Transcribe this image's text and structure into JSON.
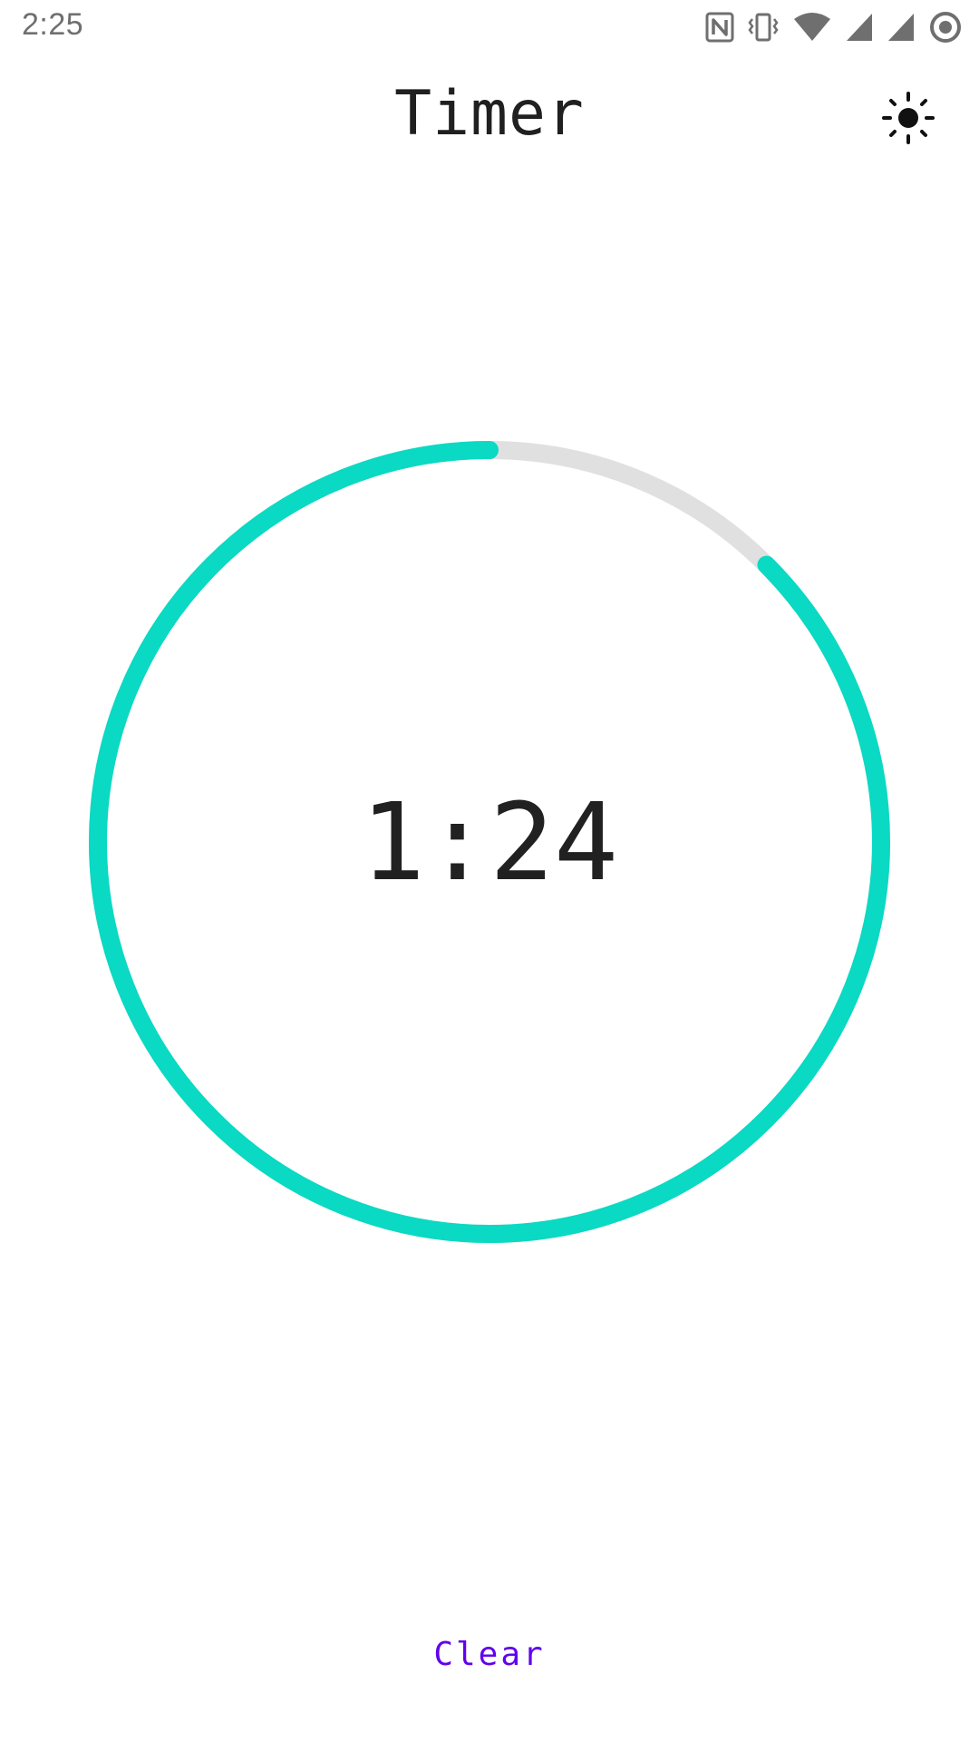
{
  "status_bar": {
    "time": "2:25",
    "icons": [
      "nfc-icon",
      "vibrate-icon",
      "wifi-icon",
      "signal-icon",
      "signal-icon-2",
      "record-icon"
    ]
  },
  "app_bar": {
    "title": "Timer",
    "theme_icon": "sun-icon"
  },
  "timer": {
    "remaining": "1:24",
    "progress_fraction": 0.875,
    "accent_color": "#0ad9c3",
    "track_color": "#e0e0e0"
  },
  "actions": {
    "clear_label": "Clear",
    "clear_color": "#6200ee"
  }
}
